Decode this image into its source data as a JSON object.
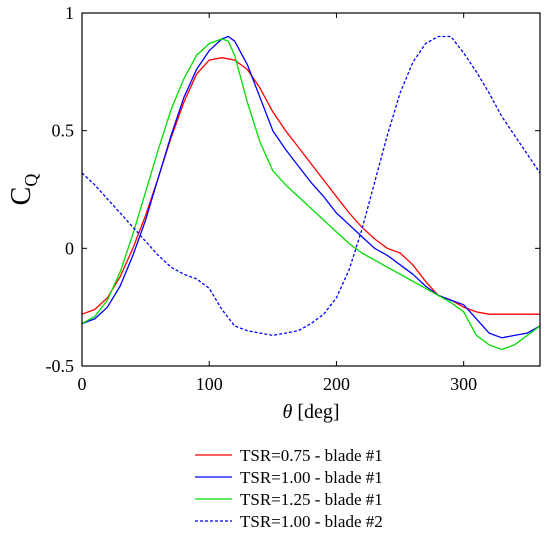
{
  "chart_data": {
    "type": "line",
    "title": "",
    "xlabel": "θ [deg]",
    "xlabel_symbol": "θ",
    "xlabel_unit": " [deg]",
    "ylabel": "CQ",
    "ylabel_main": "C",
    "ylabel_sub": "Q",
    "xlim": [
      0,
      360
    ],
    "ylim": [
      -0.5,
      1
    ],
    "xticks": [
      0,
      100,
      200,
      300
    ],
    "xtick_labels": [
      "0",
      "100",
      "200",
      "300"
    ],
    "yticks": [
      -0.5,
      0,
      0.5,
      1
    ],
    "ytick_labels": [
      "-0.5",
      "0",
      "0.5",
      "1"
    ],
    "grid": false,
    "legend_position": "below plot",
    "series": [
      {
        "name": "TSR=0.75 - blade #1",
        "color": "#ff0000",
        "dash": "solid",
        "x": [
          0,
          10,
          20,
          30,
          40,
          50,
          60,
          70,
          80,
          90,
          100,
          110,
          120,
          130,
          140,
          150,
          160,
          170,
          180,
          190,
          200,
          210,
          220,
          230,
          240,
          250,
          260,
          270,
          280,
          290,
          300,
          310,
          320,
          330,
          340,
          350,
          360
        ],
        "y": [
          -0.28,
          -0.26,
          -0.21,
          -0.12,
          0.0,
          0.14,
          0.3,
          0.47,
          0.62,
          0.74,
          0.8,
          0.81,
          0.8,
          0.76,
          0.68,
          0.58,
          0.5,
          0.43,
          0.36,
          0.29,
          0.22,
          0.15,
          0.09,
          0.04,
          0.0,
          -0.02,
          -0.07,
          -0.14,
          -0.2,
          -0.22,
          -0.25,
          -0.27,
          -0.28,
          -0.28,
          -0.28,
          -0.28,
          -0.28
        ]
      },
      {
        "name": "TSR=1.00 - blade #1",
        "color": "#0000ff",
        "dash": "solid",
        "x": [
          0,
          10,
          20,
          30,
          40,
          50,
          60,
          70,
          80,
          90,
          100,
          110,
          115,
          120,
          130,
          140,
          150,
          160,
          170,
          180,
          190,
          200,
          210,
          220,
          230,
          240,
          250,
          260,
          270,
          280,
          290,
          300,
          310,
          320,
          330,
          340,
          350,
          360
        ],
        "y": [
          -0.32,
          -0.3,
          -0.25,
          -0.16,
          -0.03,
          0.12,
          0.3,
          0.48,
          0.64,
          0.76,
          0.84,
          0.89,
          0.9,
          0.88,
          0.78,
          0.64,
          0.5,
          0.42,
          0.35,
          0.28,
          0.22,
          0.15,
          0.1,
          0.05,
          0.0,
          -0.03,
          -0.07,
          -0.11,
          -0.16,
          -0.2,
          -0.22,
          -0.24,
          -0.3,
          -0.36,
          -0.38,
          -0.37,
          -0.36,
          -0.33
        ]
      },
      {
        "name": "TSR=1.25 - blade #1",
        "color": "#00dd00",
        "dash": "solid",
        "x": [
          0,
          10,
          20,
          30,
          40,
          50,
          60,
          70,
          80,
          90,
          100,
          110,
          115,
          120,
          130,
          140,
          150,
          160,
          170,
          180,
          190,
          200,
          210,
          220,
          230,
          240,
          250,
          260,
          270,
          280,
          290,
          300,
          310,
          320,
          330,
          340,
          350,
          360
        ],
        "y": [
          -0.32,
          -0.29,
          -0.22,
          -0.1,
          0.06,
          0.24,
          0.42,
          0.59,
          0.72,
          0.82,
          0.87,
          0.89,
          0.88,
          0.82,
          0.62,
          0.45,
          0.33,
          0.27,
          0.22,
          0.17,
          0.12,
          0.07,
          0.02,
          -0.02,
          -0.05,
          -0.08,
          -0.11,
          -0.14,
          -0.17,
          -0.2,
          -0.23,
          -0.27,
          -0.37,
          -0.41,
          -0.43,
          -0.41,
          -0.37,
          -0.33
        ]
      },
      {
        "name": "TSR=1.00 - blade #2",
        "color": "#0000ff",
        "dash": "dashed",
        "x": [
          0,
          10,
          20,
          30,
          40,
          50,
          60,
          70,
          80,
          90,
          100,
          110,
          120,
          130,
          140,
          150,
          160,
          170,
          180,
          190,
          200,
          210,
          220,
          230,
          240,
          250,
          260,
          270,
          280,
          290,
          300,
          310,
          320,
          330,
          340,
          350,
          360
        ],
        "y": [
          0.32,
          0.27,
          0.21,
          0.15,
          0.09,
          0.03,
          -0.03,
          -0.08,
          -0.11,
          -0.13,
          -0.17,
          -0.26,
          -0.33,
          -0.35,
          -0.36,
          -0.37,
          -0.36,
          -0.35,
          -0.32,
          -0.28,
          -0.21,
          -0.09,
          0.08,
          0.28,
          0.48,
          0.66,
          0.79,
          0.87,
          0.9,
          0.9,
          0.83,
          0.75,
          0.66,
          0.56,
          0.48,
          0.4,
          0.32
        ]
      }
    ]
  }
}
